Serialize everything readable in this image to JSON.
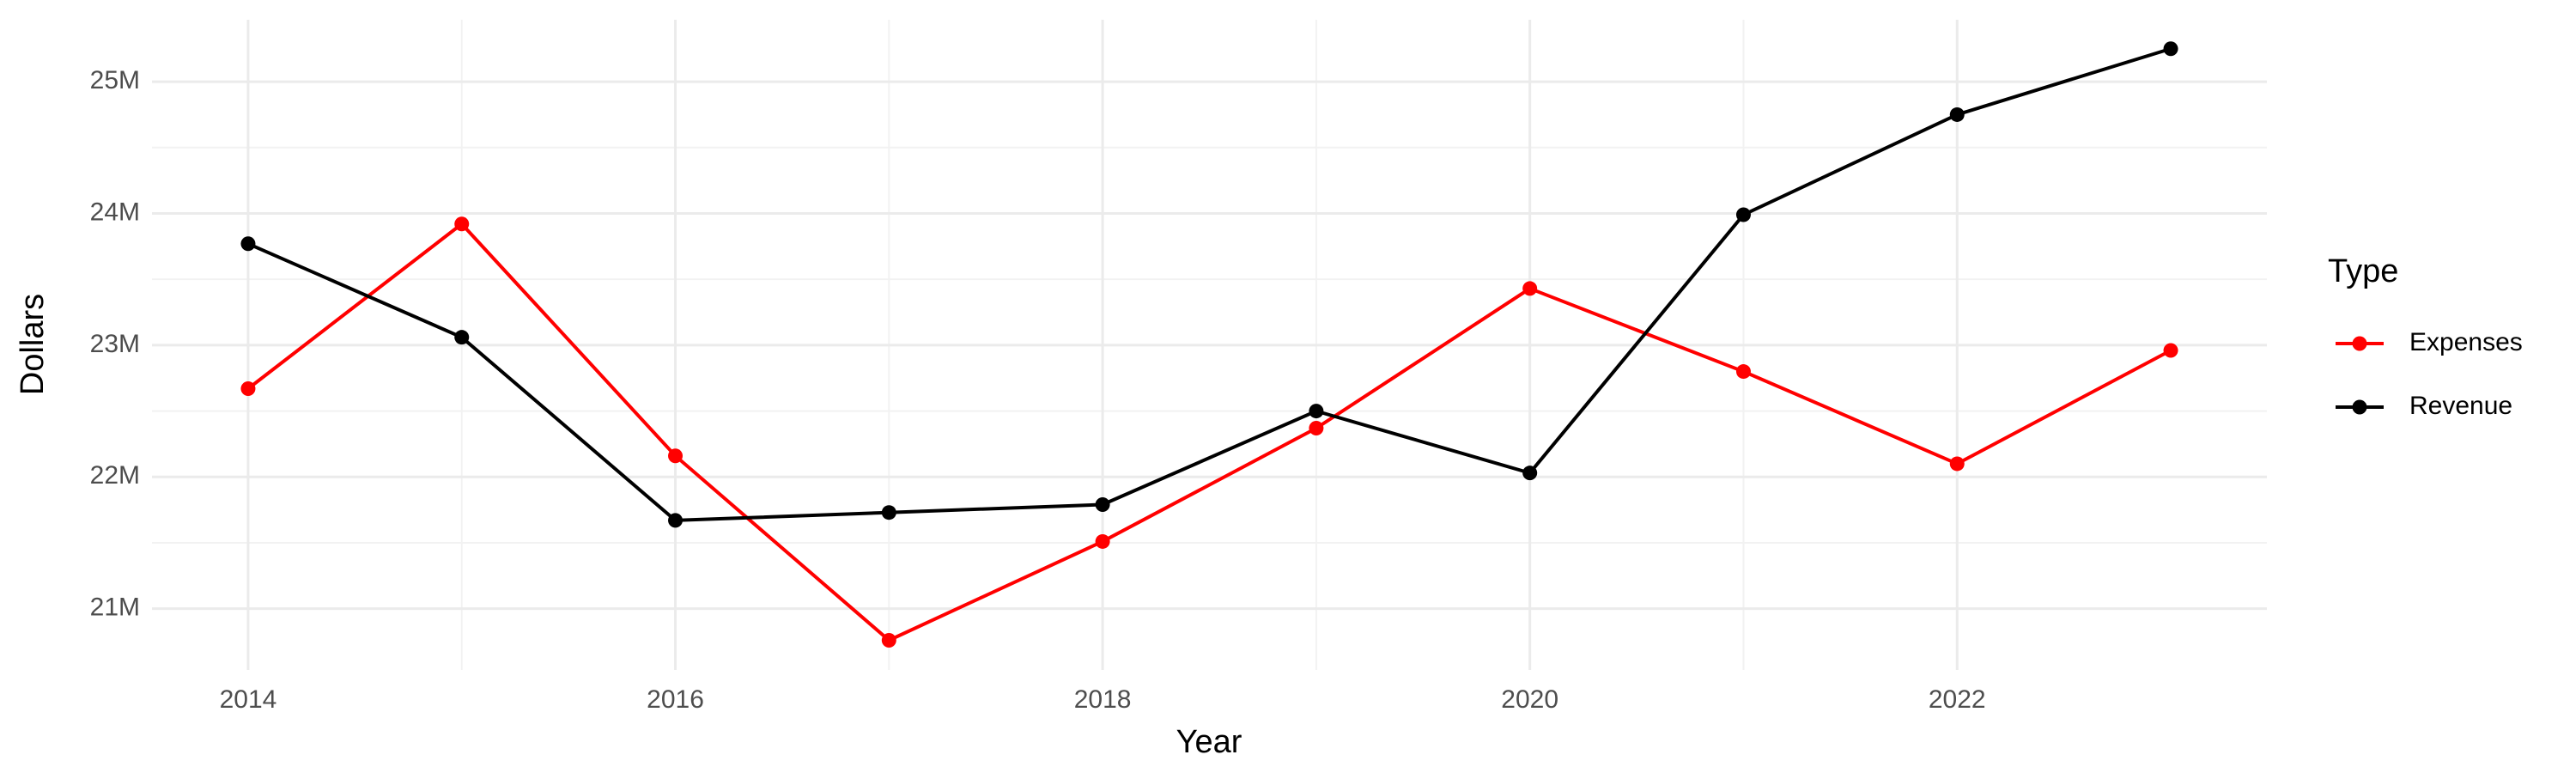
{
  "chart_data": {
    "type": "line",
    "x_label": "Year",
    "y_label": "Dollars",
    "legend_title": "Type",
    "x": [
      2014,
      2015,
      2016,
      2017,
      2018,
      2019,
      2020,
      2021,
      2022,
      2023
    ],
    "series": [
      {
        "name": "Expenses",
        "color": "#ff0000",
        "values": [
          22670000,
          23920000,
          22160000,
          20760000,
          21510000,
          22370000,
          23430000,
          22800000,
          22100000,
          22960000
        ]
      },
      {
        "name": "Revenue",
        "color": "#000000",
        "values": [
          23770000,
          23060000,
          21670000,
          21730000,
          21790000,
          22500000,
          22030000,
          23990000,
          24750000,
          25250000
        ]
      }
    ],
    "xlim": [
      2013.55,
      2023.45
    ],
    "xticks": [
      2014,
      2016,
      2018,
      2020,
      2022
    ],
    "ylim": [
      20535000,
      25470000
    ],
    "yticks": [
      {
        "value": 21000000,
        "label": "21M"
      },
      {
        "value": 22000000,
        "label": "22M"
      },
      {
        "value": 23000000,
        "label": "23M"
      },
      {
        "value": 24000000,
        "label": "24M"
      },
      {
        "value": 25000000,
        "label": "25M"
      }
    ],
    "grid": true,
    "legend": "right"
  }
}
